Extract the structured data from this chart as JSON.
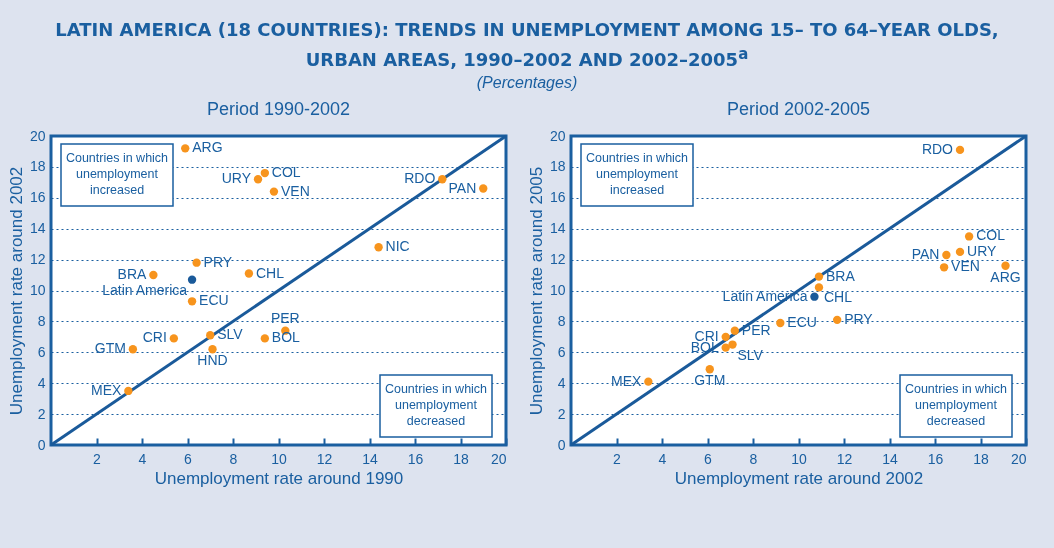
{
  "chart_data": [
    {
      "type": "scatter",
      "title": "LATIN AMERICA (18 COUNTRIES): TRENDS IN UNEMPLOYMENT AMONG 15– TO 64–YEAR OLDS, URBAN AREAS, 1990–2002 AND 2002–2005$^{a}$",
      "subtitle": "(Percentages)",
      "annotations": [
        "Period 1990-2002",
        "Countries in which\nunemployment\nincreased",
        "Countries in which\nunemployment\ndecreased"
      ],
      "xlabel": "Unemployment rate around 1990",
      "ylabel": "Unemployment rate around 2002",
      "xlim": [
        0,
        20
      ],
      "xticks": [
        2,
        4,
        6,
        8,
        10,
        12,
        14,
        16,
        18,
        20
      ],
      "ylim": [
        0,
        20
      ],
      "yticks": [
        0,
        2,
        4,
        6,
        8,
        10,
        12,
        14,
        16,
        18,
        20
      ],
      "grid": "y",
      "marker": "circle",
      "series": [
        {
          "type": "line",
          "color": "#1a5a9a",
          "marker": "none",
          "line_style": "solid",
          "x": [
            0,
            20
          ],
          "values": [
            0,
            20
          ]
        },
        {
          "name": "ARG",
          "color": "#f7941d",
          "x": [
            5.9
          ],
          "values": [
            19.2
          ]
        },
        {
          "name": "COL",
          "color": "#f7941d",
          "x": [
            9.4
          ],
          "values": [
            17.6
          ]
        },
        {
          "name": "URY",
          "color": "#f7941d",
          "x": [
            9.1
          ],
          "values": [
            17.2
          ]
        },
        {
          "name": "VEN",
          "color": "#f7941d",
          "x": [
            9.8
          ],
          "values": [
            16.4
          ]
        },
        {
          "name": "RDO",
          "color": "#f7941d",
          "x": [
            17.2
          ],
          "values": [
            17.2
          ]
        },
        {
          "name": "PAN",
          "color": "#f7941d",
          "x": [
            19.0
          ],
          "values": [
            16.6
          ]
        },
        {
          "name": "NIC",
          "color": "#f7941d",
          "x": [
            14.4
          ],
          "values": [
            12.8
          ]
        },
        {
          "name": "PRY",
          "color": "#f7941d",
          "x": [
            6.4
          ],
          "values": [
            11.8
          ]
        },
        {
          "name": "BRA",
          "color": "#f7941d",
          "x": [
            4.5
          ],
          "values": [
            11.0
          ]
        },
        {
          "name": "CHL",
          "color": "#f7941d",
          "x": [
            8.7
          ],
          "values": [
            11.1
          ]
        },
        {
          "name": "ECU",
          "color": "#f7941d",
          "x": [
            6.2
          ],
          "values": [
            9.3
          ]
        },
        {
          "name": "CRI",
          "color": "#f7941d",
          "x": [
            5.4
          ],
          "values": [
            6.9
          ]
        },
        {
          "name": "GTM",
          "color": "#f7941d",
          "x": [
            3.6
          ],
          "values": [
            6.2
          ]
        },
        {
          "name": "SLV",
          "color": "#f7941d",
          "x": [
            7.0
          ],
          "values": [
            7.1
          ]
        },
        {
          "name": "HND",
          "color": "#f7941d",
          "x": [
            7.1
          ],
          "values": [
            6.2
          ]
        },
        {
          "name": "BOL",
          "color": "#f7941d",
          "x": [
            9.4
          ],
          "values": [
            6.9
          ]
        },
        {
          "name": "PER",
          "color": "#f7941d",
          "x": [
            10.3
          ],
          "values": [
            7.4
          ]
        },
        {
          "name": "MEX",
          "color": "#f7941d",
          "x": [
            3.4
          ],
          "values": [
            3.5
          ]
        },
        {
          "name": "Latin America",
          "color": "#1a5a9a",
          "x": [
            6.2
          ],
          "values": [
            10.7
          ]
        }
      ]
    },
    {
      "type": "scatter",
      "annotations": [
        "Period 2002-2005",
        "Countries in which\nunemployment\nincreased",
        "Countries in which\nunemployment\ndecreased"
      ],
      "xlabel": "Unemployment rate around 2002",
      "ylabel": "Unemployment rate around 2005",
      "xlim": [
        0,
        20
      ],
      "xticks": [
        2,
        4,
        6,
        8,
        10,
        12,
        14,
        16,
        18,
        20
      ],
      "ylim": [
        0,
        20
      ],
      "yticks": [
        0,
        2,
        4,
        6,
        8,
        10,
        12,
        14,
        16,
        18,
        20
      ],
      "grid": "y",
      "marker": "circle",
      "series": [
        {
          "type": "line",
          "color": "#1a5a9a",
          "marker": "none",
          "line_style": "solid",
          "x": [
            0,
            20
          ],
          "values": [
            0,
            20
          ]
        },
        {
          "name": "RDO",
          "color": "#f7941d",
          "x": [
            17.1
          ],
          "values": [
            19.1
          ]
        },
        {
          "name": "COL",
          "color": "#f7941d",
          "x": [
            17.5
          ],
          "values": [
            13.5
          ]
        },
        {
          "name": "URY",
          "color": "#f7941d",
          "x": [
            17.1
          ],
          "values": [
            12.5
          ]
        },
        {
          "name": "PAN",
          "color": "#f7941d",
          "x": [
            16.5
          ],
          "values": [
            12.3
          ]
        },
        {
          "name": "VEN",
          "color": "#f7941d",
          "x": [
            16.4
          ],
          "values": [
            11.5
          ]
        },
        {
          "name": "ARG",
          "color": "#f7941d",
          "x": [
            19.1
          ],
          "values": [
            11.6
          ]
        },
        {
          "name": "BRA",
          "color": "#f7941d",
          "x": [
            10.9
          ],
          "values": [
            10.9
          ]
        },
        {
          "name": "CHL",
          "color": "#f7941d",
          "x": [
            10.9
          ],
          "values": [
            10.2
          ]
        },
        {
          "name": "PRY",
          "color": "#f7941d",
          "x": [
            11.7
          ],
          "values": [
            8.1
          ]
        },
        {
          "name": "ECU",
          "color": "#f7941d",
          "x": [
            9.2
          ],
          "values": [
            7.9
          ]
        },
        {
          "name": "PER",
          "color": "#f7941d",
          "x": [
            7.2
          ],
          "values": [
            7.4
          ]
        },
        {
          "name": "CRI",
          "color": "#f7941d",
          "x": [
            6.8
          ],
          "values": [
            7.0
          ]
        },
        {
          "name": "SLV",
          "color": "#f7941d",
          "x": [
            7.1
          ],
          "values": [
            6.5
          ]
        },
        {
          "name": "BOL",
          "color": "#f7941d",
          "x": [
            6.8
          ],
          "values": [
            6.3
          ]
        },
        {
          "name": "GTM",
          "color": "#f7941d",
          "x": [
            6.1
          ],
          "values": [
            4.9
          ]
        },
        {
          "name": "MEX",
          "color": "#f7941d",
          "x": [
            3.4
          ],
          "values": [
            4.1
          ]
        },
        {
          "name": "Latin America",
          "color": "#1a5a9a",
          "x": [
            10.7
          ],
          "values": [
            9.6
          ]
        }
      ]
    }
  ]
}
